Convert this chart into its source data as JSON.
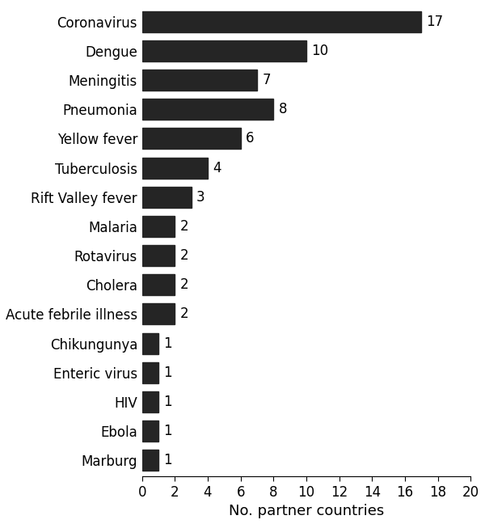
{
  "categories": [
    "Marburg",
    "Ebola",
    "HIV",
    "Enteric virus",
    "Chikungunya",
    "Acute febrile illness",
    "Cholera",
    "Rotavirus",
    "Malaria",
    "Rift Valley fever",
    "Tuberculosis",
    "Yellow fever",
    "Pneumonia",
    "Meningitis",
    "Dengue",
    "Coronavirus"
  ],
  "values": [
    1,
    1,
    1,
    1,
    1,
    2,
    2,
    2,
    2,
    3,
    4,
    6,
    8,
    7,
    10,
    17
  ],
  "bar_color": "#252525",
  "xlabel": "No. partner countries",
  "xlim": [
    0,
    20
  ],
  "xticks": [
    0,
    2,
    4,
    6,
    8,
    10,
    12,
    14,
    16,
    18,
    20
  ],
  "bar_height": 0.72,
  "value_label_fontsize": 12,
  "axis_label_fontsize": 13,
  "tick_label_fontsize": 12,
  "ylabel_fontsize": 12,
  "background_color": "#ffffff"
}
